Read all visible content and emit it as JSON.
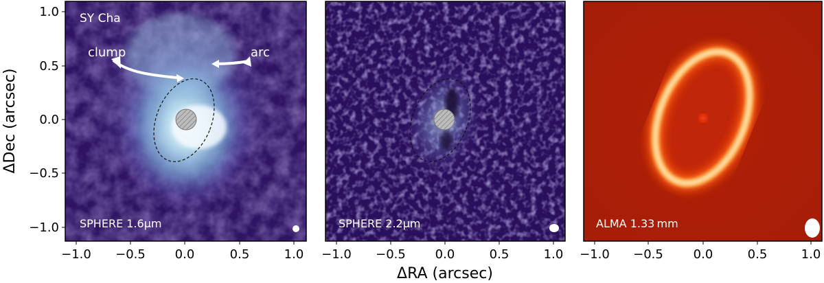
{
  "figure": {
    "ylabel": "ΔDec (arcsec)",
    "xlabel": "ΔRA (arcsec)",
    "x_ticks": [
      "−1.0",
      "−0.5",
      "0.0",
      "0.5",
      "1.0"
    ],
    "y_ticks": [
      "1.0",
      "0.5",
      "0.0",
      "−0.5",
      "−1.0"
    ],
    "panels": [
      {
        "id": "sphere-1-6",
        "label": "SPHERE 1.6µm",
        "object_name": "SY Cha",
        "annotations": [
          "clump",
          "arc"
        ],
        "colormap": "purple-to-white",
        "has_coronagraph_mask": true,
        "has_dashed_ellipse": true
      },
      {
        "id": "sphere-2-2",
        "label": "SPHERE 2.2µm",
        "colormap": "purple-to-white",
        "has_coronagraph_mask": true,
        "has_dashed_ellipse": true
      },
      {
        "id": "alma-1-33",
        "label": "ALMA 1.33 mm",
        "colormap": "dark-red-to-white",
        "has_coronagraph_mask": false,
        "has_dashed_ellipse": false
      }
    ],
    "axis_range": [
      -1.1,
      1.1
    ]
  }
}
